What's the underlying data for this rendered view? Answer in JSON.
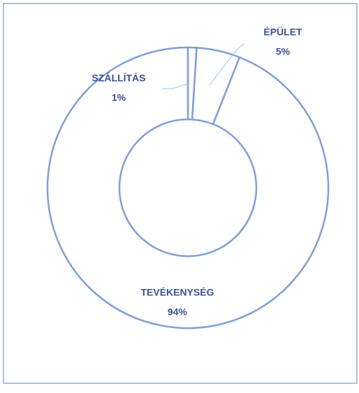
{
  "chart_data": {
    "type": "donut",
    "categories": [
      "SZÁLLÍTÁS",
      "ÉPÜLET",
      "TEVÉKENYSÉG"
    ],
    "values": [
      1,
      5,
      94
    ],
    "value_labels": [
      "1%",
      "5%",
      "94%"
    ],
    "color": "#7f9fd6",
    "label_color": "#3a5291"
  }
}
